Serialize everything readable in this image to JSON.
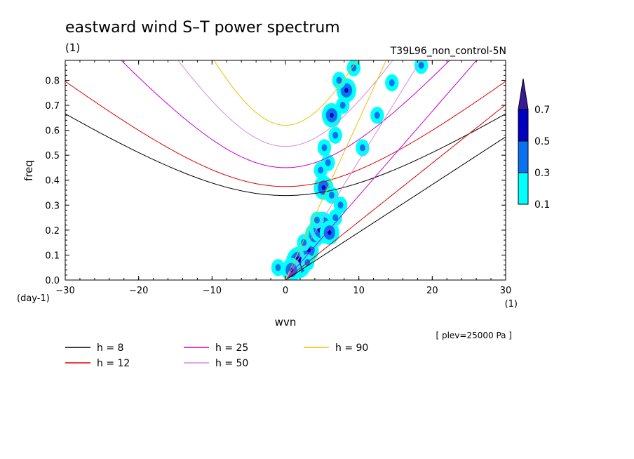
{
  "chart_data": {
    "type": "heatmap",
    "title": "eastward wind S–T power spectrum",
    "subtitle_left": "(1)",
    "subtitle_right": "T39L96_non_control-5N",
    "xlabel": "wvn",
    "ylabel": "freq",
    "x_unit": "(1)",
    "y_unit": "(day-1)",
    "annotation": "[ plev=25000 Pa ]",
    "xlim": [
      -30,
      30
    ],
    "ylim": [
      0,
      0.88
    ],
    "x_ticks": [
      -30,
      -20,
      -10,
      0,
      10,
      20,
      30
    ],
    "y_ticks": [
      0.0,
      0.1,
      0.2,
      0.3,
      0.4,
      0.5,
      0.6,
      0.7,
      0.8
    ],
    "y_tick_labels": [
      "0.0",
      "0.1",
      "0.2",
      "0.3",
      "0.4",
      "0.5",
      "0.6",
      "0.7",
      "0.8"
    ],
    "contour_levels": [
      0.1,
      0.3,
      0.5,
      0.7
    ],
    "colorbar_labels": [
      "0.1",
      "0.3",
      "0.5",
      "0.7"
    ],
    "colorbar_colors": [
      "#00ffff",
      "#0a72f0",
      "#0000c0",
      "#3a1a9a"
    ],
    "curves": [
      {
        "h": "8",
        "label": "h =  8",
        "color": "#000000"
      },
      {
        "h": "12",
        "label": "h = 12",
        "color": "#e00000"
      },
      {
        "h": "25",
        "label": "h = 25",
        "color": "#cc00cc"
      },
      {
        "h": "50",
        "label": "h = 50",
        "color": "#dd88dd"
      },
      {
        "h": "90",
        "label": "h = 90",
        "color": "#f0c000"
      }
    ],
    "spectral_blobs": [
      {
        "x": 1.8,
        "y": 0.07,
        "level": 3
      },
      {
        "x": 0.8,
        "y": 0.04,
        "level": 2
      },
      {
        "x": 3.2,
        "y": 0.12,
        "level": 2
      },
      {
        "x": 2.5,
        "y": 0.15,
        "level": 1
      },
      {
        "x": 4.0,
        "y": 0.18,
        "level": 2
      },
      {
        "x": 5.0,
        "y": 0.21,
        "level": 3
      },
      {
        "x": 6.0,
        "y": 0.19,
        "level": 2
      },
      {
        "x": 4.3,
        "y": 0.24,
        "level": 1
      },
      {
        "x": 6.8,
        "y": 0.25,
        "level": 1
      },
      {
        "x": 5.2,
        "y": 0.37,
        "level": 2
      },
      {
        "x": 6.3,
        "y": 0.34,
        "level": 1
      },
      {
        "x": 4.8,
        "y": 0.44,
        "level": 1
      },
      {
        "x": 5.8,
        "y": 0.47,
        "level": 1
      },
      {
        "x": 5.3,
        "y": 0.53,
        "level": 1
      },
      {
        "x": 6.8,
        "y": 0.58,
        "level": 1
      },
      {
        "x": 6.3,
        "y": 0.66,
        "level": 2
      },
      {
        "x": 7.8,
        "y": 0.7,
        "level": 1
      },
      {
        "x": 8.3,
        "y": 0.76,
        "level": 2
      },
      {
        "x": 7.3,
        "y": 0.8,
        "level": 1
      },
      {
        "x": 9.3,
        "y": 0.85,
        "level": 1
      },
      {
        "x": 12.5,
        "y": 0.66,
        "level": 1
      },
      {
        "x": 14.5,
        "y": 0.79,
        "level": 1
      },
      {
        "x": 18.5,
        "y": 0.86,
        "level": 1
      },
      {
        "x": 10.5,
        "y": 0.53,
        "level": 1
      },
      {
        "x": 3.0,
        "y": 0.07,
        "level": 1
      },
      {
        "x": -1.0,
        "y": 0.05,
        "level": 1
      },
      {
        "x": 7.5,
        "y": 0.3,
        "level": 1
      }
    ],
    "grid": false,
    "legend_placement": "bottom-left"
  }
}
